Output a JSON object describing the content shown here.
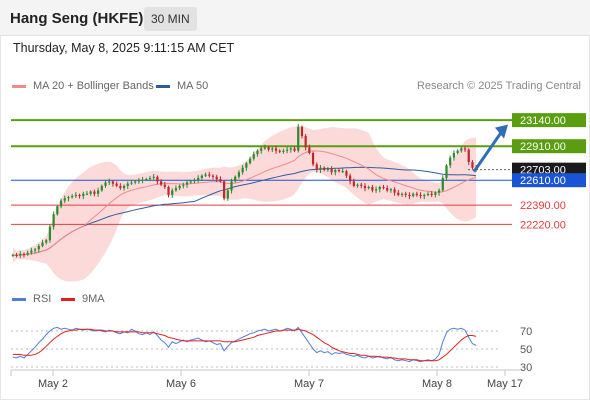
{
  "header": {
    "title": "Hang Seng (HKFE)",
    "interval": "30 MIN"
  },
  "datetime": "Thursday, May 8, 2025 9:11:15 AM CET",
  "legend": {
    "ma20": {
      "label": "MA 20 + Bollinger Bands",
      "color": "#f08a8a"
    },
    "ma50": {
      "label": "MA 50",
      "color": "#2e5d9e"
    }
  },
  "credit": "Research © 2025 Trading Central",
  "rsi_legend": {
    "rsi": {
      "label": "RSI",
      "color": "#4f7fd9"
    },
    "ma9": {
      "label": "9MA",
      "color": "#e02020"
    }
  },
  "colors": {
    "resistance": "#5a9e10",
    "support": "#e63b3b",
    "pivot": "#1a53d6",
    "last": "#1a1a1a",
    "up_candle": "#2d8a2d",
    "down_candle": "#c0272d",
    "band": "#fbd3d3",
    "arrow": "#2f6db5"
  },
  "chart_data": [
    {
      "type": "candlestick",
      "title": "Hang Seng (HKFE)",
      "x_ticks": [
        "May 2",
        "May 6",
        "May 7",
        "May 8",
        "May 17"
      ],
      "y_range": [
        21800,
        23300
      ],
      "price_levels": [
        {
          "value": 23140,
          "label": "23140.00",
          "kind": "resistance"
        },
        {
          "value": 22910,
          "label": "22910.00",
          "kind": "resistance"
        },
        {
          "value": 22703,
          "label": "22703.00",
          "kind": "last"
        },
        {
          "value": 22610,
          "label": "22610.00",
          "kind": "pivot"
        },
        {
          "value": 22390,
          "label": "22390.00",
          "kind": "support"
        },
        {
          "value": 22220,
          "label": "22220.00",
          "kind": "support"
        }
      ],
      "close": [
        21950,
        21945,
        21960,
        21955,
        21970,
        21990,
        22000,
        22030,
        22060,
        22080,
        22200,
        22310,
        22380,
        22430,
        22450,
        22460,
        22470,
        22480,
        22470,
        22490,
        22490,
        22510,
        22490,
        22520,
        22560,
        22590,
        22600,
        22580,
        22560,
        22540,
        22560,
        22580,
        22590,
        22600,
        22610,
        22615,
        22620,
        22630,
        22640,
        22600,
        22570,
        22550,
        22480,
        22520,
        22540,
        22560,
        22570,
        22590,
        22600,
        22610,
        22630,
        22650,
        22660,
        22650,
        22640,
        22620,
        22600,
        22450,
        22520,
        22600,
        22640,
        22680,
        22720,
        22760,
        22800,
        22840,
        22870,
        22890,
        22900,
        22880,
        22890,
        22870,
        22860,
        22870,
        22880,
        22890,
        22870,
        23080,
        23000,
        22900,
        22850,
        22750,
        22700,
        22720,
        22700,
        22710,
        22680,
        22700,
        22690,
        22690,
        22650,
        22600,
        22560,
        22570,
        22560,
        22540,
        22550,
        22520,
        22530,
        22550,
        22540,
        22520,
        22530,
        22500,
        22480,
        22490,
        22480,
        22470,
        22490,
        22480,
        22470,
        22480,
        22490,
        22480,
        22500,
        22520,
        22630,
        22740,
        22810,
        22850,
        22870,
        22890,
        22880,
        22770,
        22720,
        22703
      ],
      "ma20_range": [
        22000,
        22820
      ],
      "ma50_range": [
        21950,
        22660
      ]
    },
    {
      "type": "line",
      "title": "RSI",
      "series": [
        {
          "name": "RSI",
          "values": [
            41,
            40,
            42,
            40,
            44,
            48,
            52,
            57,
            61,
            66,
            70,
            73,
            74,
            72,
            73,
            72,
            71,
            73,
            72,
            71,
            72,
            71,
            70,
            71,
            70,
            69,
            71,
            70,
            68,
            67,
            69,
            68,
            72,
            70,
            67,
            66,
            68,
            66,
            69,
            65,
            60,
            57,
            52,
            58,
            56,
            58,
            60,
            58,
            60,
            61,
            62,
            60,
            58,
            59,
            57,
            55,
            56,
            48,
            53,
            57,
            59,
            61,
            63,
            65,
            67,
            68,
            70,
            71,
            72,
            70,
            71,
            72,
            70,
            71,
            73,
            72,
            70,
            74,
            68,
            62,
            56,
            50,
            46,
            48,
            46,
            47,
            44,
            46,
            45,
            46,
            44,
            43,
            42,
            43,
            41,
            40,
            42,
            40,
            41,
            42,
            40,
            39,
            41,
            38,
            37,
            38,
            37,
            36,
            38,
            37,
            36,
            37,
            38,
            37,
            39,
            44,
            58,
            68,
            72,
            73,
            72,
            73,
            71,
            63,
            56,
            54
          ]
        },
        {
          "name": "9MA",
          "values": [
            44,
            44,
            44,
            43,
            43,
            43,
            44,
            46,
            49,
            53,
            57,
            61,
            64,
            67,
            69,
            70,
            71,
            71,
            72,
            72,
            72,
            72,
            71,
            71,
            71,
            70,
            70,
            70,
            69,
            69,
            69,
            69,
            69,
            69,
            69,
            68,
            68,
            68,
            68,
            67,
            66,
            65,
            63,
            62,
            61,
            60,
            59,
            59,
            59,
            59,
            59,
            59,
            59,
            59,
            59,
            59,
            59,
            58,
            58,
            58,
            58,
            59,
            60,
            61,
            62,
            63,
            65,
            66,
            67,
            68,
            69,
            70,
            70,
            71,
            71,
            71,
            71,
            72,
            71,
            70,
            68,
            66,
            63,
            60,
            57,
            55,
            52,
            50,
            48,
            47,
            46,
            45,
            45,
            44,
            43,
            43,
            42,
            42,
            42,
            41,
            41,
            41,
            40,
            40,
            39,
            39,
            39,
            38,
            38,
            38,
            37,
            37,
            37,
            37,
            37,
            38,
            41,
            44,
            48,
            52,
            56,
            60,
            63,
            65,
            65,
            64
          ]
        }
      ],
      "y_ticks": [
        "70",
        "50",
        "30"
      ],
      "y_range": [
        20,
        80
      ]
    }
  ]
}
